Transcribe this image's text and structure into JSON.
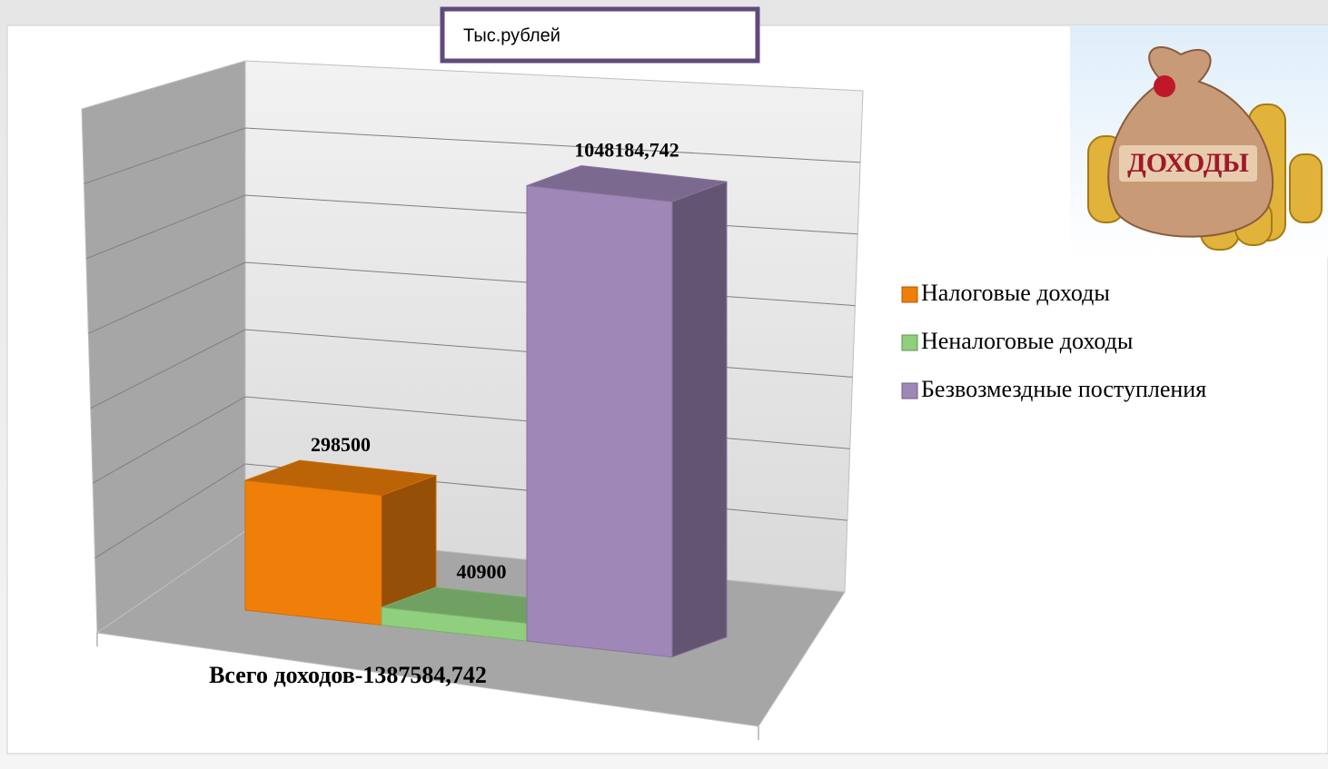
{
  "chart_data": {
    "type": "bar3d",
    "subtitle": "Тыс.рублей",
    "categories": [
      "Всего доходов-1387584,742"
    ],
    "series": [
      {
        "name": "Налоговые  доходы",
        "color": "#f07f09",
        "values": [
          298500
        ]
      },
      {
        "name": "Неналоговые доходы",
        "color": "#8fcf7d",
        "values": [
          40900
        ]
      },
      {
        "name": "Безвозмездные поступления",
        "color": "#9f87b8",
        "values": [
          1048184.742
        ],
        "value_labels": [
          "1048184,742"
        ]
      }
    ],
    "ylim": [
      0,
      1400000
    ],
    "yticks": [
      0,
      200000,
      400000,
      600000,
      800000,
      1000000,
      1200000,
      1400000
    ],
    "grid": true,
    "legend": "right",
    "badge_text": "ДОХОДЫ"
  }
}
